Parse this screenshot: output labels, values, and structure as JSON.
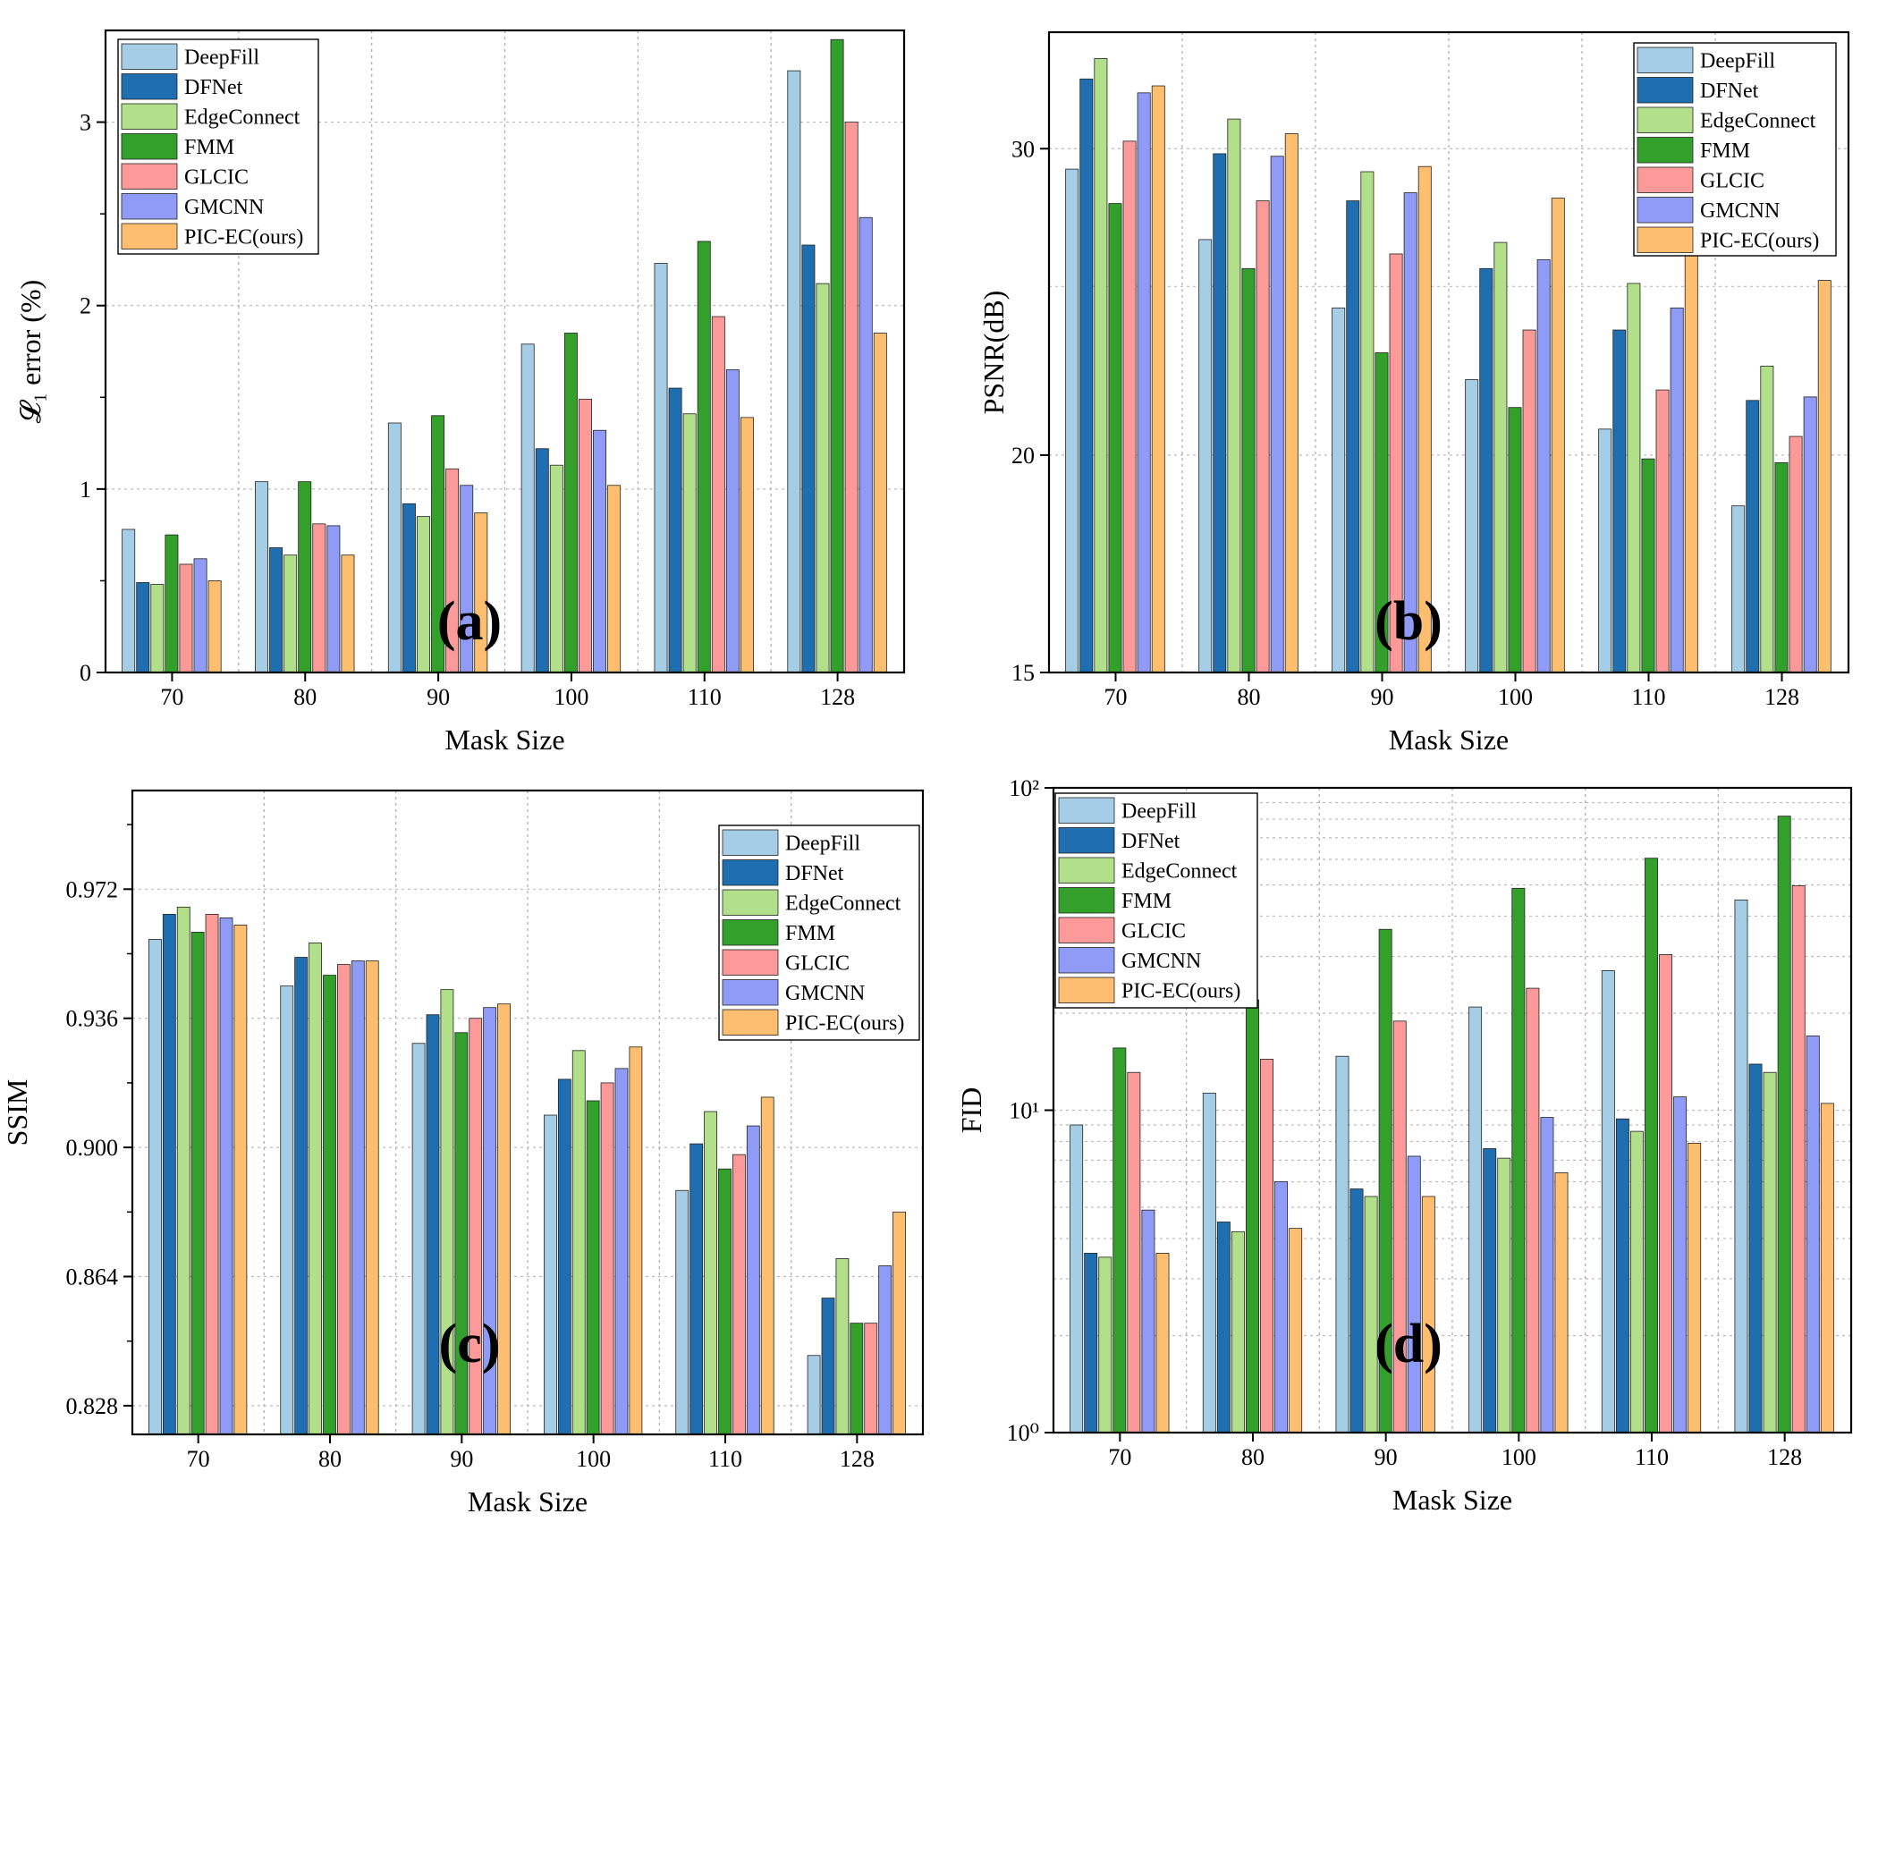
{
  "figure": {
    "panel_labels": [
      "(a)",
      "(b)",
      "(c)",
      "(d)"
    ]
  },
  "legend_entries": [
    {
      "name": "DeepFill",
      "color": "#a6cde6"
    },
    {
      "name": "DFNet",
      "color": "#1f6fb0"
    },
    {
      "name": "EdgeConnect",
      "color": "#b2df8a"
    },
    {
      "name": "FMM",
      "color": "#33a02c"
    },
    {
      "name": "GLCIC",
      "color": "#fb9a99"
    },
    {
      "name": "GMCNN",
      "color": "#8f9bf7"
    },
    {
      "name": "PIC-EC(ours)",
      "color": "#fdbf6f"
    }
  ],
  "chart_data": [
    {
      "type": "bar",
      "panel": "(a)",
      "ylabel": "𝓛₁ error (%)",
      "xlabel": "Mask Size",
      "categories": [
        "70",
        "80",
        "90",
        "100",
        "110",
        "128"
      ],
      "yscale": "linear",
      "ylim": [
        0,
        3.5
      ],
      "yticks": [
        0,
        1,
        2,
        3
      ],
      "ytick_labels": [
        "0",
        "1",
        "2",
        "3"
      ],
      "legend": "top-left",
      "series": [
        {
          "name": "DeepFill",
          "values": [
            0.78,
            1.04,
            1.36,
            1.79,
            2.23,
            3.28
          ]
        },
        {
          "name": "DFNet",
          "values": [
            0.49,
            0.68,
            0.92,
            1.22,
            1.55,
            2.33
          ]
        },
        {
          "name": "EdgeConnect",
          "values": [
            0.48,
            0.64,
            0.85,
            1.13,
            1.41,
            2.12
          ]
        },
        {
          "name": "FMM",
          "values": [
            0.75,
            1.04,
            1.4,
            1.85,
            2.35,
            3.45
          ]
        },
        {
          "name": "GLCIC",
          "values": [
            0.59,
            0.81,
            1.11,
            1.49,
            1.94,
            3.0
          ]
        },
        {
          "name": "GMCNN",
          "values": [
            0.62,
            0.8,
            1.02,
            1.32,
            1.65,
            2.48
          ]
        },
        {
          "name": "PIC-EC(ours)",
          "values": [
            0.5,
            0.64,
            0.87,
            1.02,
            1.39,
            1.85
          ]
        }
      ]
    },
    {
      "type": "bar",
      "panel": "(b)",
      "ylabel": "PSNR(dB)",
      "xlabel": "Mask Size",
      "categories": [
        "70",
        "80",
        "90",
        "100",
        "110",
        "128"
      ],
      "yscale": "log",
      "ylim": [
        15,
        35
      ],
      "yticks": [
        15,
        20,
        30
      ],
      "ytick_labels": [
        "15",
        "20",
        "30"
      ],
      "minor_gridlines": [
        25
      ],
      "legend": "top-right",
      "series": [
        {
          "name": "DeepFill",
          "values": [
            29.2,
            26.6,
            24.3,
            22.1,
            20.7,
            18.7
          ]
        },
        {
          "name": "DFNet",
          "values": [
            32.9,
            29.8,
            28.0,
            25.6,
            23.6,
            21.5
          ]
        },
        {
          "name": "EdgeConnect",
          "values": [
            33.8,
            31.2,
            29.1,
            26.5,
            25.1,
            22.5
          ]
        },
        {
          "name": "FMM",
          "values": [
            27.9,
            25.6,
            22.9,
            21.3,
            19.9,
            19.8
          ]
        },
        {
          "name": "GLCIC",
          "values": [
            30.3,
            28.0,
            26.1,
            23.6,
            21.8,
            20.5
          ]
        },
        {
          "name": "GMCNN",
          "values": [
            32.3,
            29.7,
            28.3,
            25.9,
            24.3,
            21.6
          ]
        },
        {
          "name": "PIC-EC(ours)",
          "values": [
            32.6,
            30.6,
            29.3,
            28.1,
            27.0,
            25.2
          ]
        }
      ]
    },
    {
      "type": "bar",
      "panel": "(c)",
      "ylabel": "SSIM",
      "xlabel": "Mask Size",
      "categories": [
        "70",
        "80",
        "90",
        "100",
        "110",
        "128"
      ],
      "yscale": "linear",
      "ylim": [
        0.82,
        0.9995
      ],
      "yticks": [
        0.828,
        0.864,
        0.9,
        0.936,
        0.972
      ],
      "ytick_labels": [
        "0.828",
        "0.864",
        "0.900",
        "0.936",
        "0.972"
      ],
      "legend": "top-right",
      "series": [
        {
          "name": "DeepFill",
          "values": [
            0.958,
            0.945,
            0.929,
            0.909,
            0.888,
            0.842
          ]
        },
        {
          "name": "DFNet",
          "values": [
            0.965,
            0.953,
            0.937,
            0.919,
            0.901,
            0.858
          ]
        },
        {
          "name": "EdgeConnect",
          "values": [
            0.967,
            0.957,
            0.944,
            0.927,
            0.91,
            0.869
          ]
        },
        {
          "name": "FMM",
          "values": [
            0.96,
            0.948,
            0.932,
            0.913,
            0.894,
            0.851
          ]
        },
        {
          "name": "GLCIC",
          "values": [
            0.965,
            0.951,
            0.936,
            0.918,
            0.898,
            0.851
          ]
        },
        {
          "name": "GMCNN",
          "values": [
            0.964,
            0.952,
            0.939,
            0.922,
            0.906,
            0.867
          ]
        },
        {
          "name": "PIC-EC(ours)",
          "values": [
            0.962,
            0.952,
            0.94,
            0.928,
            0.914,
            0.882
          ]
        }
      ]
    },
    {
      "type": "bar",
      "panel": "(d)",
      "ylabel": "FID",
      "xlabel": "Mask Size",
      "categories": [
        "70",
        "80",
        "90",
        "100",
        "110",
        "128"
      ],
      "yscale": "log",
      "ylim": [
        1,
        100
      ],
      "yticks": [
        1,
        10,
        100
      ],
      "ytick_labels": [
        "10⁰",
        "10¹",
        "10²"
      ],
      "minor_gridlines": [
        2,
        3,
        4,
        5,
        6,
        7,
        8,
        9,
        20,
        30,
        40,
        50,
        60,
        70,
        80,
        90
      ],
      "legend": "top-left",
      "series": [
        {
          "name": "DeepFill",
          "values": [
            9.0,
            11.3,
            14.7,
            20.9,
            27.1,
            44.9
          ]
        },
        {
          "name": "DFNet",
          "values": [
            3.6,
            4.5,
            5.7,
            7.6,
            9.4,
            13.9
          ]
        },
        {
          "name": "EdgeConnect",
          "values": [
            3.5,
            4.2,
            5.4,
            7.1,
            8.6,
            13.1
          ]
        },
        {
          "name": "FMM",
          "values": [
            15.6,
            22.0,
            36.4,
            48.8,
            60.5,
            81.7
          ]
        },
        {
          "name": "GLCIC",
          "values": [
            13.1,
            14.4,
            18.9,
            23.9,
            30.4,
            49.7
          ]
        },
        {
          "name": "GMCNN",
          "values": [
            4.9,
            6.0,
            7.2,
            9.5,
            11.0,
            17.0
          ]
        },
        {
          "name": "PIC-EC(ours)",
          "values": [
            3.6,
            4.3,
            5.4,
            6.4,
            7.9,
            10.5
          ]
        }
      ]
    }
  ]
}
